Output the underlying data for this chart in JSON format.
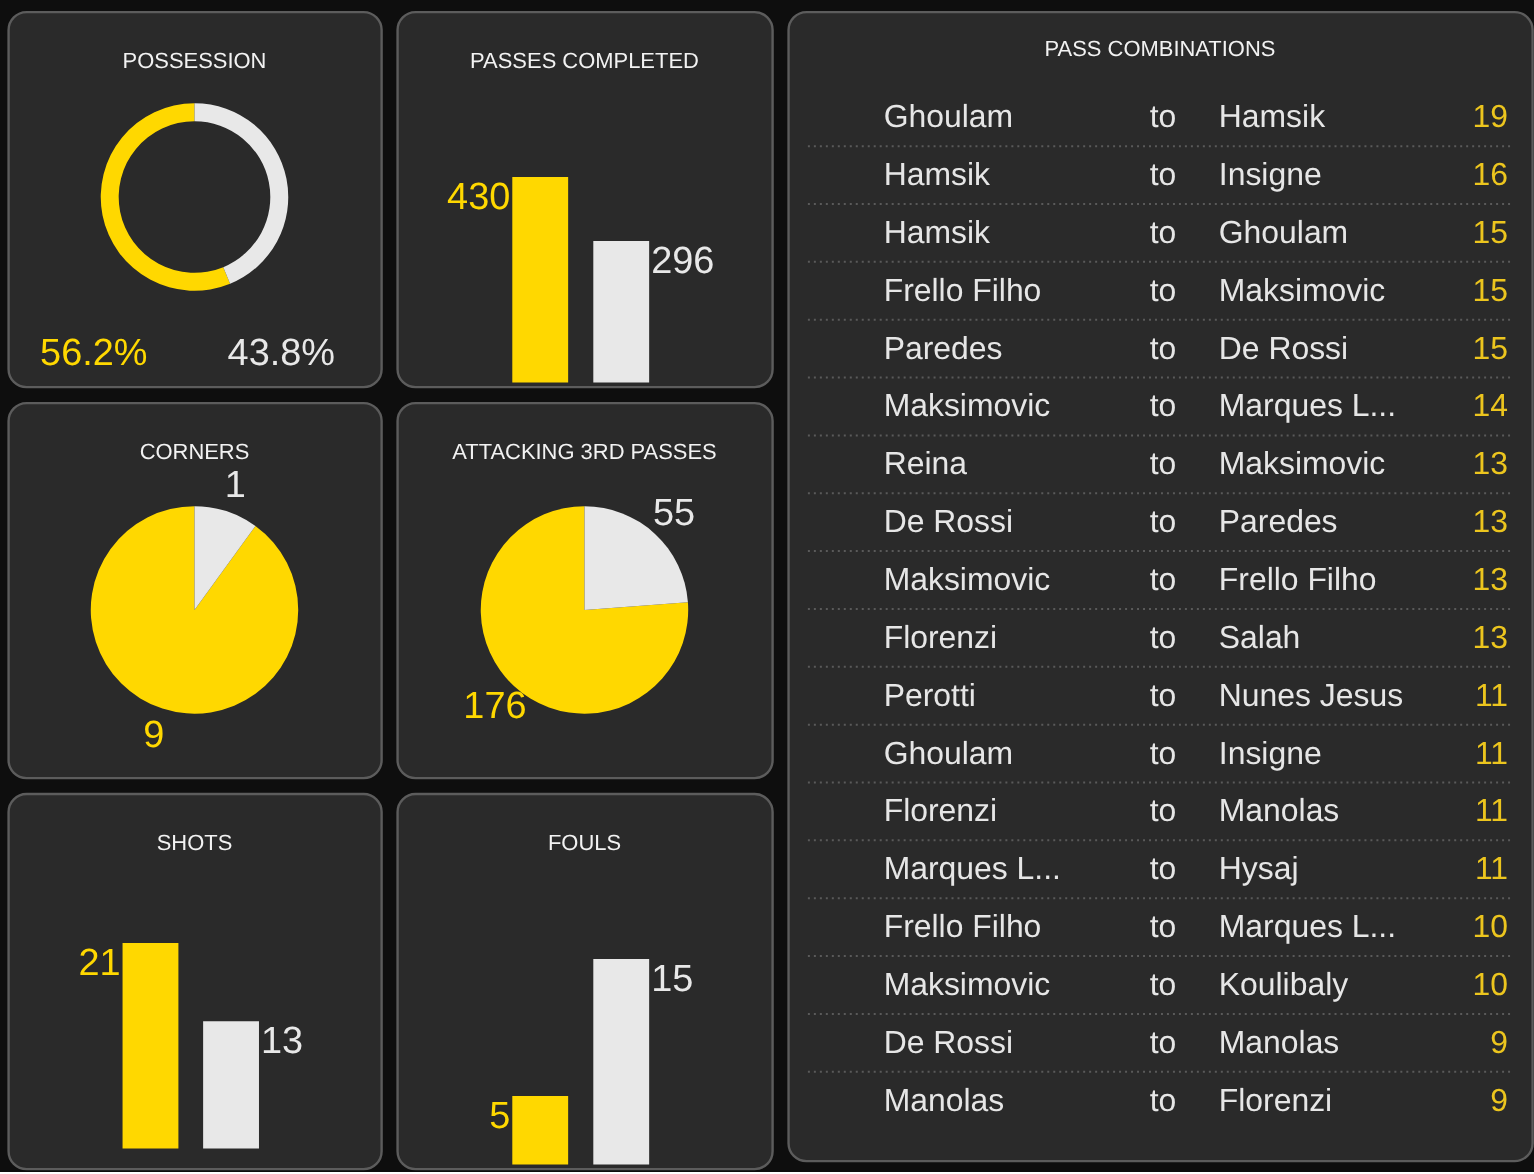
{
  "chart_data": [
    {
      "type": "donut",
      "title": "POSSESSION",
      "categories": [
        null,
        null
      ],
      "values": [
        56.2,
        43.8
      ],
      "colors": [
        "#ffd800",
        "#e8e8e8"
      ],
      "value_labels": [
        "56.2%",
        "43.8%"
      ]
    },
    {
      "type": "bar",
      "title": "PASSES COMPLETED",
      "categories": [
        null,
        null
      ],
      "values": [
        430,
        296
      ],
      "colors": [
        "#ffd800",
        "#e8e8e8"
      ],
      "data_labels": true
    },
    {
      "type": "other",
      "title": "PASS COMBINATIONS",
      "categories": [
        "Ghoulam",
        "Hamsik",
        "Hamsik",
        "Frello Filho",
        "Paredes",
        "Maksimovic",
        "Reina",
        "De Rossi",
        "Maksimovic",
        "Florenzi",
        "Perotti",
        "Ghoulam",
        "Florenzi",
        "Marques L...",
        "Frello Filho",
        "Maksimovic",
        "De Rossi",
        "Manolas"
      ],
      "y2_categories": [
        "Hamsik",
        "Insigne",
        "Ghoulam",
        "Maksimovic",
        "De Rossi",
        "Marques L...",
        "Maksimovic",
        "Paredes",
        "Frello Filho",
        "Salah",
        "Nunes Jesus",
        "Insigne",
        "Manolas",
        "Hysaj",
        "Marques L...",
        "Koulibaly",
        "Manolas",
        "Florenzi"
      ],
      "values": [
        19,
        16,
        15,
        15,
        15,
        14,
        13,
        13,
        13,
        13,
        11,
        11,
        11,
        11,
        10,
        10,
        9,
        9
      ],
      "data_labels": true,
      "annotations": [
        "to"
      ]
    },
    {
      "type": "pie",
      "title": "CORNERS",
      "categories": [
        null,
        null
      ],
      "values": [
        9,
        1
      ],
      "colors": [
        "#ffd800",
        "#e8e8e8"
      ],
      "data_labels": true
    },
    {
      "type": "pie",
      "title": "ATTACKING 3RD PASSES",
      "categories": [
        null,
        null
      ],
      "values": [
        176,
        55
      ],
      "colors": [
        "#ffd800",
        "#e8e8e8"
      ],
      "data_labels": true
    },
    {
      "type": "bar",
      "title": "SHOTS",
      "categories": [
        null,
        null
      ],
      "values": [
        21,
        13
      ],
      "colors": [
        "#ffd800",
        "#e8e8e8"
      ],
      "data_labels": true
    },
    {
      "type": "bar",
      "title": "FOULS",
      "categories": [
        null,
        null
      ],
      "values": [
        5,
        15
      ],
      "colors": [
        "#ffd800",
        "#e8e8e8"
      ],
      "data_labels": true
    }
  ]
}
